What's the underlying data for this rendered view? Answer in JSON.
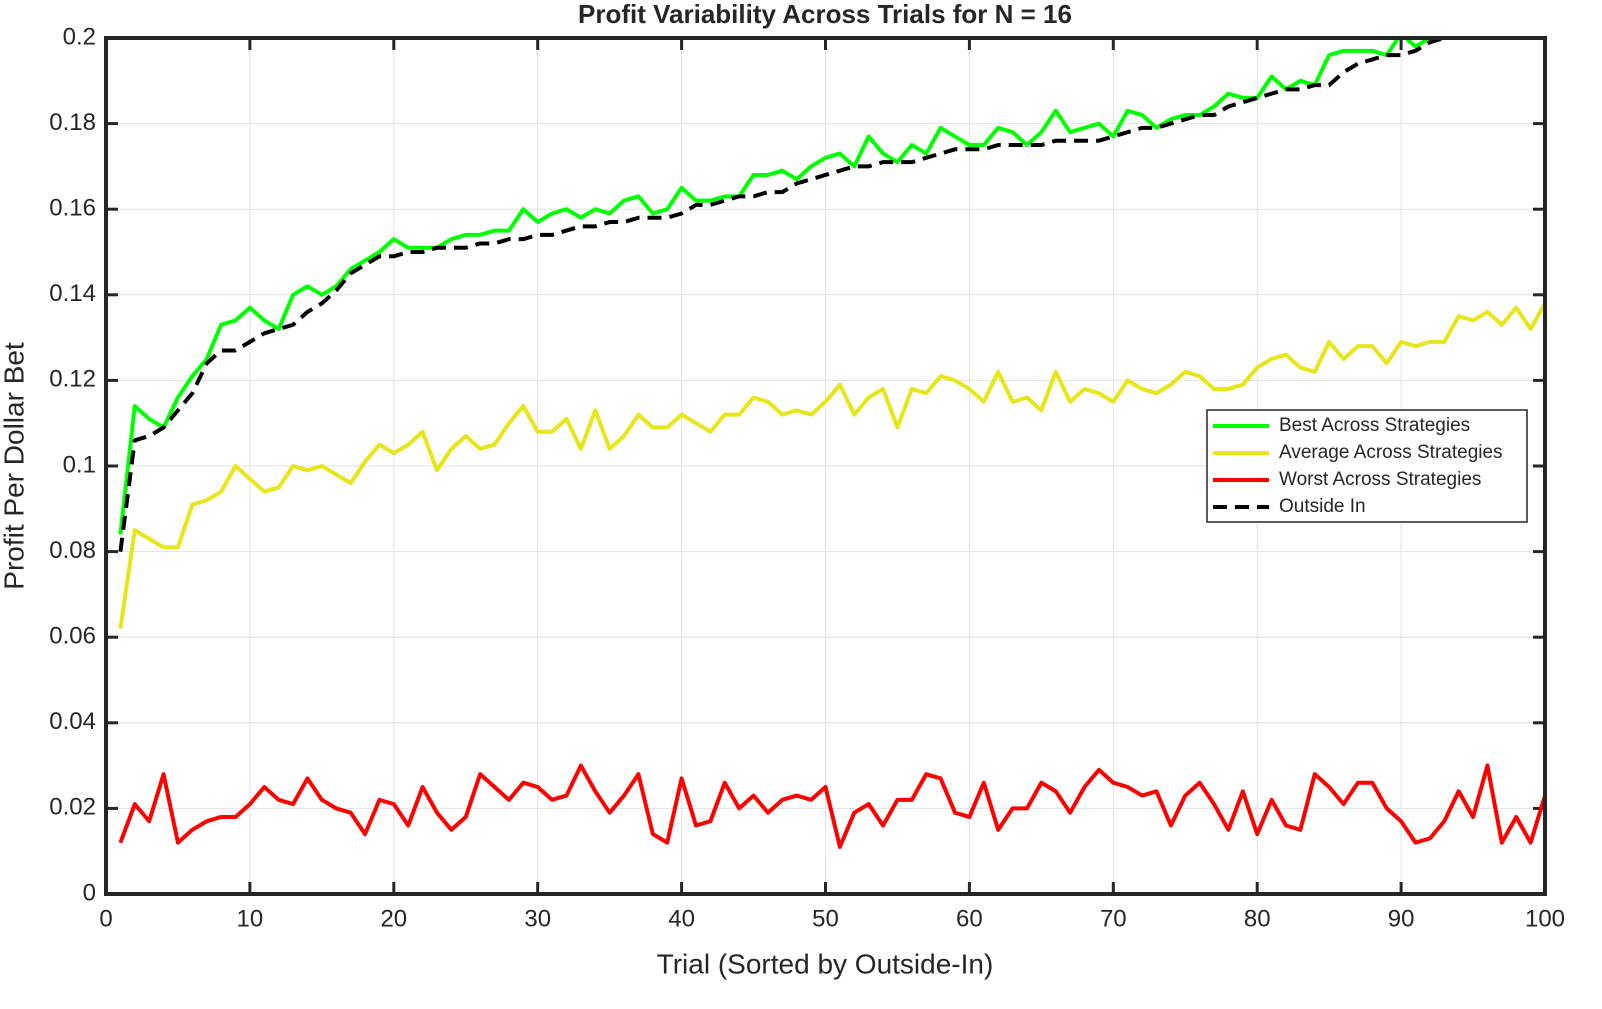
{
  "chart_data": {
    "type": "line",
    "title": "Profit Variability Across Trials for N = 16",
    "xlabel": "Trial (Sorted by Outside-In)",
    "ylabel": "Profit Per Dollar Bet",
    "x": [
      1,
      2,
      3,
      4,
      5,
      6,
      7,
      8,
      9,
      10,
      11,
      12,
      13,
      14,
      15,
      16,
      17,
      18,
      19,
      20,
      21,
      22,
      23,
      24,
      25,
      26,
      27,
      28,
      29,
      30,
      31,
      32,
      33,
      34,
      35,
      36,
      37,
      38,
      39,
      40,
      41,
      42,
      43,
      44,
      45,
      46,
      47,
      48,
      49,
      50,
      51,
      52,
      53,
      54,
      55,
      56,
      57,
      58,
      59,
      60,
      61,
      62,
      63,
      64,
      65,
      66,
      67,
      68,
      69,
      70,
      71,
      72,
      73,
      74,
      75,
      76,
      77,
      78,
      79,
      80,
      81,
      82,
      83,
      84,
      85,
      86,
      87,
      88,
      89,
      90,
      91,
      92,
      93,
      94,
      95,
      96,
      97,
      98,
      99,
      100
    ],
    "series": [
      {
        "name": "Best Across Strategies",
        "color": "#00ff00",
        "linestyle": "-",
        "values": [
          0.084,
          0.114,
          0.111,
          0.109,
          0.116,
          0.121,
          0.125,
          0.133,
          0.134,
          0.137,
          0.134,
          0.132,
          0.14,
          0.142,
          0.14,
          0.142,
          0.146,
          0.148,
          0.15,
          0.153,
          0.151,
          0.151,
          0.151,
          0.153,
          0.154,
          0.154,
          0.155,
          0.155,
          0.16,
          0.157,
          0.159,
          0.16,
          0.158,
          0.16,
          0.159,
          0.162,
          0.163,
          0.159,
          0.16,
          0.165,
          0.162,
          0.162,
          0.163,
          0.163,
          0.168,
          0.168,
          0.169,
          0.167,
          0.17,
          0.172,
          0.173,
          0.17,
          0.177,
          0.173,
          0.171,
          0.175,
          0.173,
          0.179,
          0.177,
          0.175,
          0.175,
          0.179,
          0.178,
          0.175,
          0.178,
          0.183,
          0.178,
          0.179,
          0.18,
          0.177,
          0.183,
          0.182,
          0.179,
          0.181,
          0.182,
          0.182,
          0.184,
          0.187,
          0.186,
          0.186,
          0.191,
          0.188,
          0.19,
          0.189,
          0.196,
          0.197,
          0.197,
          0.197,
          0.196,
          0.201,
          0.198,
          0.2,
          0.203,
          0.204,
          0.203,
          0.206,
          0.205,
          0.207,
          0.206,
          0.209
        ]
      },
      {
        "name": "Average Across Strategies",
        "color": "#e6e619",
        "linestyle": "-",
        "values": [
          0.062,
          0.085,
          0.083,
          0.081,
          0.081,
          0.091,
          0.092,
          0.094,
          0.1,
          0.097,
          0.094,
          0.095,
          0.1,
          0.099,
          0.1,
          0.098,
          0.096,
          0.101,
          0.105,
          0.103,
          0.105,
          0.108,
          0.099,
          0.104,
          0.107,
          0.104,
          0.105,
          0.11,
          0.114,
          0.108,
          0.108,
          0.111,
          0.104,
          0.113,
          0.104,
          0.107,
          0.112,
          0.109,
          0.109,
          0.112,
          0.11,
          0.108,
          0.112,
          0.112,
          0.116,
          0.115,
          0.112,
          0.113,
          0.112,
          0.115,
          0.119,
          0.112,
          0.116,
          0.118,
          0.109,
          0.118,
          0.117,
          0.121,
          0.12,
          0.118,
          0.115,
          0.122,
          0.115,
          0.116,
          0.113,
          0.122,
          0.115,
          0.118,
          0.117,
          0.115,
          0.12,
          0.118,
          0.117,
          0.119,
          0.122,
          0.121,
          0.118,
          0.118,
          0.119,
          0.123,
          0.125,
          0.126,
          0.123,
          0.122,
          0.129,
          0.125,
          0.128,
          0.128,
          0.124,
          0.129,
          0.128,
          0.129,
          0.129,
          0.135,
          0.134,
          0.136,
          0.133,
          0.137,
          0.132,
          0.138
        ]
      },
      {
        "name": "Worst Across Strategies",
        "color": "#ff0000",
        "linestyle": "-",
        "values": [
          0.012,
          0.021,
          0.017,
          0.028,
          0.012,
          0.015,
          0.017,
          0.018,
          0.018,
          0.021,
          0.025,
          0.022,
          0.021,
          0.027,
          0.022,
          0.02,
          0.019,
          0.014,
          0.022,
          0.021,
          0.016,
          0.025,
          0.019,
          0.015,
          0.018,
          0.028,
          0.025,
          0.022,
          0.026,
          0.025,
          0.022,
          0.023,
          0.03,
          0.024,
          0.019,
          0.023,
          0.028,
          0.014,
          0.012,
          0.027,
          0.016,
          0.017,
          0.026,
          0.02,
          0.023,
          0.019,
          0.022,
          0.023,
          0.022,
          0.025,
          0.011,
          0.019,
          0.021,
          0.016,
          0.022,
          0.022,
          0.028,
          0.027,
          0.019,
          0.018,
          0.026,
          0.015,
          0.02,
          0.02,
          0.026,
          0.024,
          0.019,
          0.025,
          0.029,
          0.026,
          0.025,
          0.023,
          0.024,
          0.016,
          0.023,
          0.026,
          0.021,
          0.015,
          0.024,
          0.014,
          0.022,
          0.016,
          0.015,
          0.028,
          0.025,
          0.021,
          0.026,
          0.026,
          0.02,
          0.017,
          0.012,
          0.013,
          0.017,
          0.024,
          0.018,
          0.03,
          0.012,
          0.018,
          0.012,
          0.023
        ]
      },
      {
        "name": "Outside In",
        "color": "#000000",
        "linestyle": "--",
        "values": [
          0.08,
          0.106,
          0.107,
          0.109,
          0.113,
          0.117,
          0.124,
          0.127,
          0.127,
          0.129,
          0.131,
          0.132,
          0.133,
          0.136,
          0.138,
          0.141,
          0.145,
          0.147,
          0.149,
          0.149,
          0.15,
          0.15,
          0.151,
          0.151,
          0.151,
          0.152,
          0.152,
          0.153,
          0.153,
          0.154,
          0.154,
          0.155,
          0.156,
          0.156,
          0.157,
          0.157,
          0.158,
          0.158,
          0.158,
          0.159,
          0.161,
          0.161,
          0.162,
          0.163,
          0.163,
          0.164,
          0.164,
          0.166,
          0.167,
          0.168,
          0.169,
          0.17,
          0.17,
          0.171,
          0.171,
          0.171,
          0.172,
          0.173,
          0.174,
          0.174,
          0.174,
          0.175,
          0.175,
          0.175,
          0.175,
          0.176,
          0.176,
          0.176,
          0.176,
          0.177,
          0.178,
          0.179,
          0.179,
          0.18,
          0.181,
          0.182,
          0.182,
          0.184,
          0.185,
          0.186,
          0.187,
          0.188,
          0.188,
          0.189,
          0.189,
          0.192,
          0.194,
          0.195,
          0.196,
          0.196,
          0.197,
          0.199,
          0.2,
          0.201,
          0.201,
          0.202,
          0.203,
          0.203,
          0.204,
          0.205
        ]
      }
    ],
    "xlim": [
      0,
      100
    ],
    "xticks": [
      0,
      10,
      20,
      30,
      40,
      50,
      60,
      70,
      80,
      90,
      100
    ],
    "ylim": [
      0,
      0.2
    ],
    "yticks": [
      0,
      0.02,
      0.04,
      0.06,
      0.08,
      0.1,
      0.12,
      0.14,
      0.16,
      0.18,
      0.2
    ],
    "grid": true,
    "legend": "east"
  }
}
